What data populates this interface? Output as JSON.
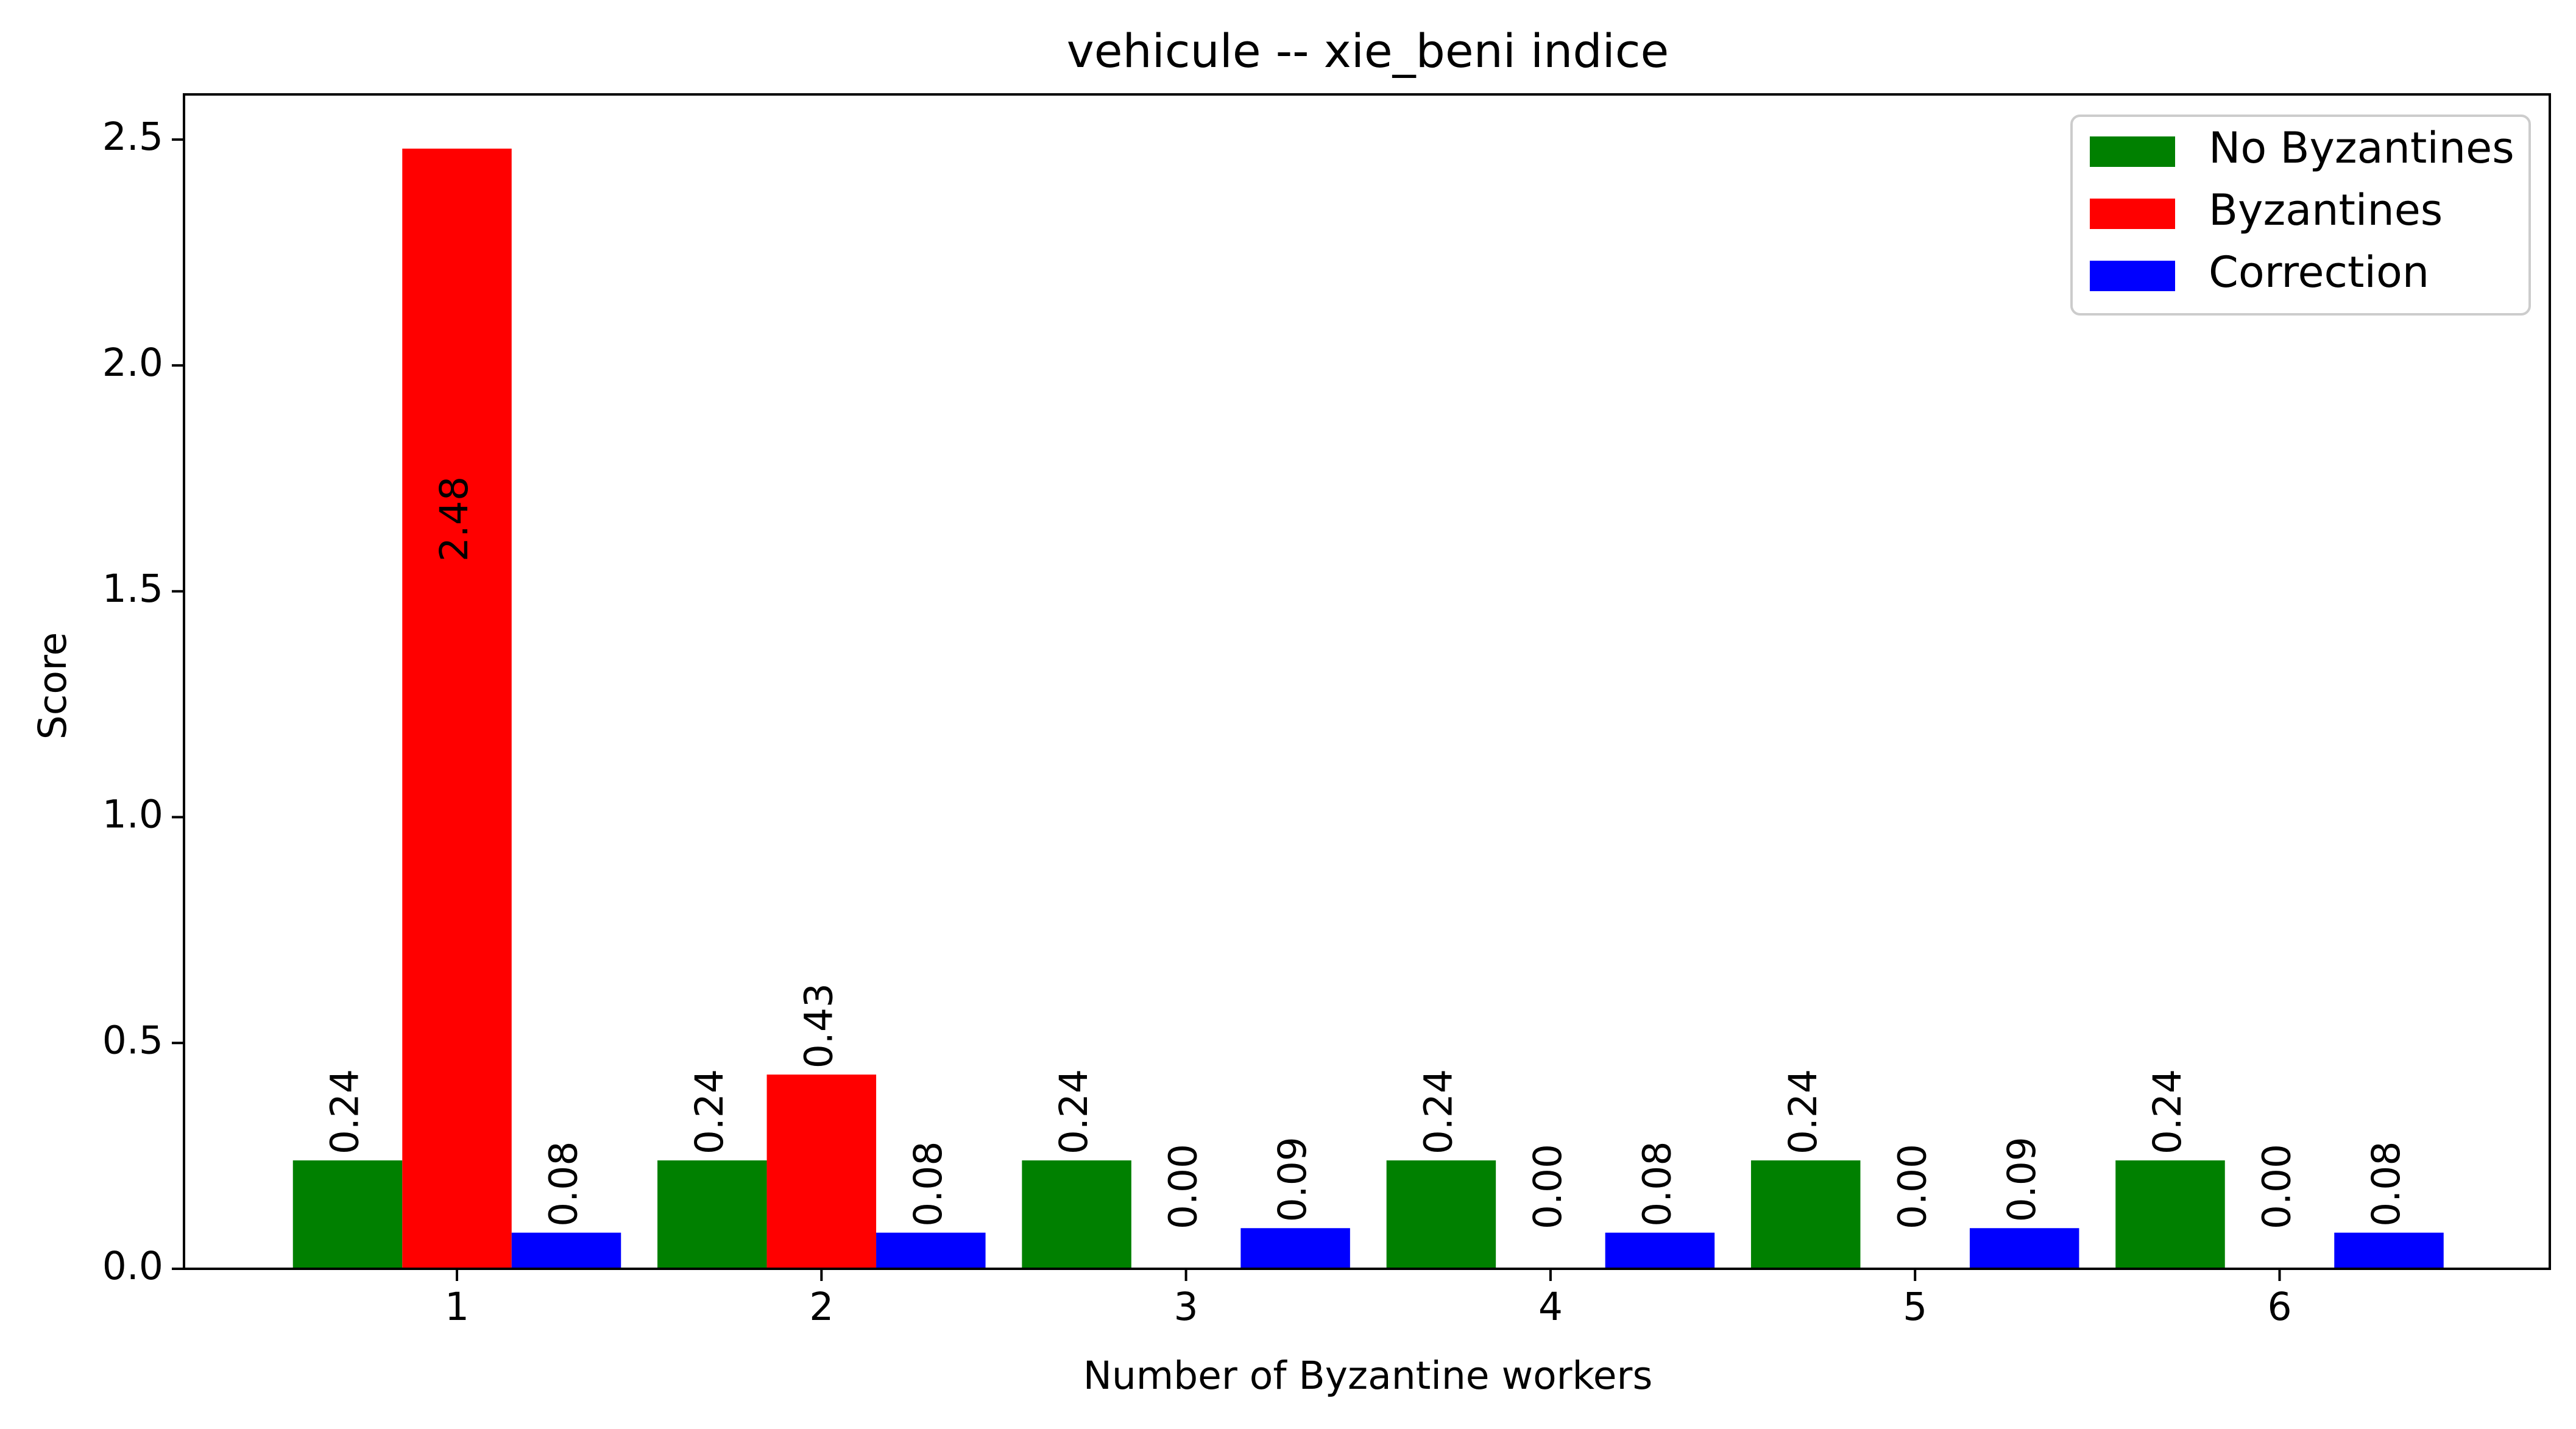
{
  "chart_data": {
    "type": "bar",
    "title": "vehicule -- xie_beni indice",
    "xlabel": "Number of Byzantine workers",
    "ylabel": "Score",
    "categories": [
      "1",
      "2",
      "3",
      "4",
      "5",
      "6"
    ],
    "ylim": [
      0,
      2.6
    ],
    "yticks": [
      "0.0",
      "0.5",
      "1.0",
      "1.5",
      "2.0",
      "2.5"
    ],
    "legend_position": "top-right",
    "grid": false,
    "series": [
      {
        "name": "No Byzantines",
        "color": "#008000",
        "values": [
          0.24,
          0.24,
          0.24,
          0.24,
          0.24,
          0.24
        ],
        "labels": [
          "0.24",
          "0.24",
          "0.24",
          "0.24",
          "0.24",
          "0.24"
        ]
      },
      {
        "name": "Byzantines",
        "color": "#ff0000",
        "values": [
          2.48,
          0.43,
          0.0,
          0.0,
          0.0,
          0.0
        ],
        "labels": [
          "2.48",
          "0.43",
          "0.00",
          "0.00",
          "0.00",
          "0.00"
        ]
      },
      {
        "name": "Correction",
        "color": "#0000ff",
        "values": [
          0.08,
          0.08,
          0.09,
          0.08,
          0.09,
          0.08
        ],
        "labels": [
          "0.08",
          "0.08",
          "0.09",
          "0.08",
          "0.09",
          "0.08"
        ]
      }
    ]
  }
}
